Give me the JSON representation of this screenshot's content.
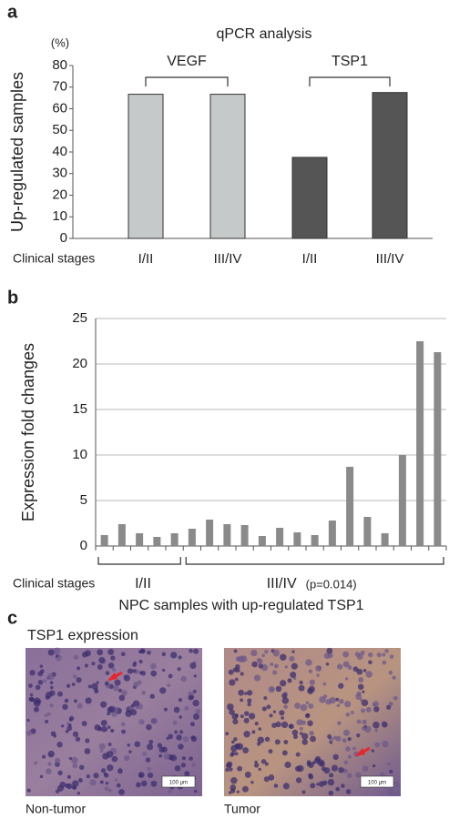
{
  "chart_data": [
    {
      "type": "bar",
      "panel_label": "a",
      "title": "qPCR analysis",
      "unit": "(%)",
      "y_label": "Up-regulated samples",
      "x_label": "Clinical stages",
      "categories": [
        "I/II",
        "III/IV",
        "I/II",
        "III/IV"
      ],
      "series": [
        {
          "name": "VEGF",
          "color": "#c6c9c9",
          "values": [
            66.7,
            66.7,
            null,
            null
          ]
        },
        {
          "name": "TSP1",
          "color": "#555555",
          "values": [
            null,
            null,
            37.5,
            67.5
          ]
        }
      ],
      "ylim": [
        0,
        80
      ],
      "yticks": [
        0,
        10,
        20,
        30,
        40,
        50,
        60,
        70,
        80
      ],
      "grid": false
    },
    {
      "type": "bar",
      "panel_label": "b",
      "y_label": "Expression fold changes",
      "x_label": "NPC samples with up-regulated TSP1",
      "stage_prefix": "Clinical stages",
      "stages": [
        {
          "label": "I/II",
          "count": 5
        },
        {
          "label": "III/IV",
          "count": 15,
          "note": "(p=0.014)"
        }
      ],
      "categories": [
        null,
        null,
        null,
        null,
        null,
        null,
        null,
        null,
        null,
        null,
        null,
        null,
        null,
        null,
        null,
        null,
        null,
        null,
        null,
        null
      ],
      "values": [
        1.2,
        2.4,
        1.4,
        1.0,
        1.4,
        1.9,
        2.9,
        2.4,
        2.3,
        1.1,
        2.0,
        1.5,
        1.2,
        2.8,
        8.7,
        3.2,
        1.4,
        10.0,
        22.5,
        21.3
      ],
      "color": "#8a8a8a",
      "ylim": [
        0,
        25
      ],
      "yticks": [
        0,
        5,
        10,
        15,
        20,
        25
      ],
      "grid": true
    }
  ],
  "panel_c": {
    "panel_label": "c",
    "title": "TSP1 expression",
    "images": [
      {
        "caption": "Non-tumor",
        "scale_bar": "100 μm"
      },
      {
        "caption": "Tumor",
        "scale_bar": "100 μm"
      }
    ]
  }
}
